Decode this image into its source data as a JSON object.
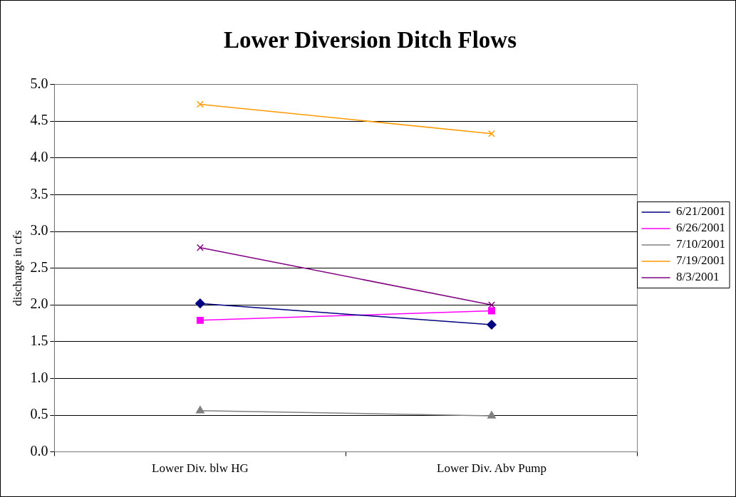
{
  "chart_data": {
    "type": "line",
    "title": "Lower Diversion Ditch Flows",
    "ylabel": "discharge in cfs",
    "categories": [
      "Lower Div. blw HG",
      "Lower Div. Abv Pump"
    ],
    "series": [
      {
        "name": "6/21/2001",
        "color": "#000080",
        "marker": "diamond",
        "values": [
          2.02,
          1.73
        ]
      },
      {
        "name": "6/26/2001",
        "color": "#ff00ff",
        "marker": "square",
        "values": [
          1.79,
          1.92
        ]
      },
      {
        "name": "7/10/2001",
        "color": "#808080",
        "marker": "triangle",
        "values": [
          0.56,
          0.49
        ]
      },
      {
        "name": "7/19/2001",
        "color": "#ff9900",
        "marker": "cross",
        "values": [
          4.73,
          4.33
        ]
      },
      {
        "name": "8/3/2001",
        "color": "#800080",
        "marker": "cross",
        "values": [
          2.78,
          2.0
        ]
      }
    ],
    "ylim": [
      0,
      5
    ],
    "yticks": [
      {
        "value": 0,
        "label": "0.0"
      },
      {
        "value": 0.5,
        "label": "0.5"
      },
      {
        "value": 1,
        "label": "1.0"
      },
      {
        "value": 1.5,
        "label": "1.5"
      },
      {
        "value": 2,
        "label": "2.0"
      },
      {
        "value": 2.5,
        "label": "2.5"
      },
      {
        "value": 3,
        "label": "3.0"
      },
      {
        "value": 3.5,
        "label": "3.5"
      },
      {
        "value": 4,
        "label": "4.0"
      },
      {
        "value": 4.5,
        "label": "4.5"
      },
      {
        "value": 5,
        "label": "5.0"
      }
    ],
    "grid": "y",
    "legend": "right",
    "line_style": "solid"
  }
}
